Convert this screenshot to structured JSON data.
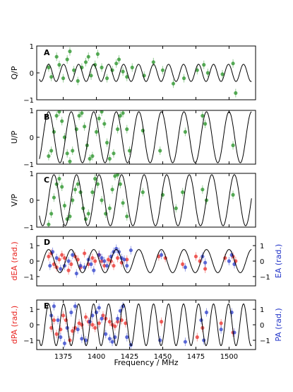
{
  "chart_data": [
    {
      "type": "scatter",
      "panel_label": "A",
      "ylabel": "Q/P",
      "ylim": [
        -1,
        1
      ],
      "yticks": [
        -1,
        0,
        1
      ],
      "xlim": [
        1355,
        1520
      ],
      "model": {
        "amplitude": 0.32,
        "period_mhz": 11.3,
        "phase_ref_mhz": 1364
      },
      "series": [
        {
          "color": "#1a8c1a",
          "points": [
            [
              1364,
              0.2
            ],
            [
              1366,
              -0.15
            ],
            [
              1370,
              0.6
            ],
            [
              1372,
              0.3
            ],
            [
              1375,
              -0.2
            ],
            [
              1378,
              0.5
            ],
            [
              1380,
              0.8
            ],
            [
              1383,
              0.1
            ],
            [
              1386,
              -0.3
            ],
            [
              1389,
              0.2
            ],
            [
              1392,
              0.4
            ],
            [
              1394,
              0.6
            ],
            [
              1396,
              -0.1
            ],
            [
              1399,
              0.3
            ],
            [
              1401,
              0.7
            ],
            [
              1404,
              0.2
            ],
            [
              1408,
              -0.2
            ],
            [
              1412,
              0.1
            ],
            [
              1415,
              0.35
            ],
            [
              1417,
              0.5
            ],
            [
              1420,
              0.05
            ],
            [
              1423,
              -0.15
            ],
            [
              1427,
              0.2
            ],
            [
              1436,
              -0.1
            ],
            [
              1443,
              0.4
            ],
            [
              1450,
              0.1
            ],
            [
              1458,
              -0.4
            ],
            [
              1466,
              -0.2
            ],
            [
              1476,
              0.1
            ],
            [
              1481,
              0.3
            ],
            [
              1484,
              0.0
            ],
            [
              1495,
              -0.05
            ],
            [
              1503,
              0.35
            ],
            [
              1505,
              -0.75
            ]
          ]
        }
      ]
    },
    {
      "type": "scatter",
      "panel_label": "B",
      "ylabel": "U/P",
      "ylim": [
        -1,
        1
      ],
      "yticks": [
        -1,
        0,
        1
      ],
      "xlim": [
        1355,
        1520
      ],
      "model": {
        "amplitude": 0.95,
        "period_mhz": 17.0,
        "phase_ref_mhz": 1364
      },
      "series": [
        {
          "color": "#1a8c1a",
          "points": [
            [
              1364,
              -0.7
            ],
            [
              1366,
              -0.5
            ],
            [
              1368,
              0.2
            ],
            [
              1370,
              0.8
            ],
            [
              1372,
              0.95
            ],
            [
              1374,
              0.6
            ],
            [
              1376,
              0.0
            ],
            [
              1378,
              -0.6
            ],
            [
              1380,
              -0.9
            ],
            [
              1382,
              -0.5
            ],
            [
              1385,
              0.3
            ],
            [
              1387,
              0.8
            ],
            [
              1389,
              0.9
            ],
            [
              1391,
              0.4
            ],
            [
              1393,
              -0.3
            ],
            [
              1395,
              -0.8
            ],
            [
              1397,
              -0.7
            ],
            [
              1400,
              0.2
            ],
            [
              1402,
              0.7
            ],
            [
              1404,
              0.95
            ],
            [
              1406,
              0.5
            ],
            [
              1408,
              -0.2
            ],
            [
              1410,
              -0.8
            ],
            [
              1413,
              -0.6
            ],
            [
              1416,
              0.3
            ],
            [
              1418,
              0.8
            ],
            [
              1420,
              0.9
            ],
            [
              1423,
              0.3
            ],
            [
              1425,
              -0.5
            ],
            [
              1435,
              0.25
            ],
            [
              1448,
              -0.5
            ],
            [
              1467,
              0.2
            ],
            [
              1480,
              0.8
            ],
            [
              1482,
              0.5
            ],
            [
              1503,
              -0.3
            ]
          ]
        }
      ]
    },
    {
      "type": "scatter",
      "panel_label": "C",
      "ylabel": "V/P",
      "ylim": [
        -1,
        1
      ],
      "yticks": [
        -1,
        0,
        1
      ],
      "xlim": [
        1355,
        1520
      ],
      "model": {
        "amplitude": 0.95,
        "period_mhz": 17.0,
        "phase_ref_mhz": 1368
      },
      "series": [
        {
          "color": "#1a8c1a",
          "points": [
            [
              1364,
              -0.9
            ],
            [
              1366,
              -0.5
            ],
            [
              1368,
              0.1
            ],
            [
              1370,
              0.6
            ],
            [
              1372,
              0.8
            ],
            [
              1374,
              0.5
            ],
            [
              1376,
              -0.2
            ],
            [
              1378,
              -0.7
            ],
            [
              1380,
              -0.6
            ],
            [
              1382,
              0.0
            ],
            [
              1384,
              0.4
            ],
            [
              1386,
              0.6
            ],
            [
              1388,
              0.3
            ],
            [
              1390,
              -0.3
            ],
            [
              1392,
              -0.7
            ],
            [
              1394,
              -0.5
            ],
            [
              1397,
              0.3
            ],
            [
              1399,
              0.8
            ],
            [
              1401,
              0.6
            ],
            [
              1404,
              0.0
            ],
            [
              1407,
              -0.5
            ],
            [
              1410,
              -0.3
            ],
            [
              1412,
              0.4
            ],
            [
              1414,
              0.9
            ],
            [
              1416,
              0.95
            ],
            [
              1418,
              0.6
            ],
            [
              1420,
              -0.1
            ],
            [
              1423,
              -0.6
            ],
            [
              1435,
              0.3
            ],
            [
              1450,
              0.2
            ],
            [
              1460,
              -0.3
            ],
            [
              1465,
              0.3
            ],
            [
              1480,
              0.4
            ],
            [
              1483,
              0.0
            ],
            [
              1503,
              0.2
            ]
          ]
        }
      ]
    },
    {
      "type": "scatter",
      "panel_label": "D",
      "ylabel": "dEA (rad.)",
      "ylabel_right": "EA (rad.)",
      "ylim": [
        -1.6,
        1.6
      ],
      "yticks": [
        -1,
        0,
        1
      ],
      "xlim": [
        1355,
        1520
      ],
      "model": {
        "amplitude": 0.75,
        "period_mhz": 17.0,
        "phase_ref_mhz": 1364
      },
      "series": [
        {
          "axis": "left",
          "color": "#e8231f",
          "points": [
            [
              1364,
              0.3
            ],
            [
              1366,
              0.5
            ],
            [
              1368,
              -0.2
            ],
            [
              1370,
              -0.4
            ],
            [
              1372,
              0.1
            ],
            [
              1374,
              0.4
            ],
            [
              1376,
              0.2
            ],
            [
              1379,
              -0.6
            ],
            [
              1381,
              -0.2
            ],
            [
              1384,
              0.3
            ],
            [
              1386,
              0.1
            ],
            [
              1388,
              -0.4
            ],
            [
              1391,
              0.5
            ],
            [
              1394,
              -0.2
            ],
            [
              1397,
              0.2
            ],
            [
              1399,
              0.0
            ],
            [
              1402,
              0.4
            ],
            [
              1404,
              0.0
            ],
            [
              1406,
              -0.3
            ],
            [
              1409,
              0.1
            ],
            [
              1411,
              0.0
            ],
            [
              1413,
              -0.3
            ],
            [
              1416,
              0.2
            ],
            [
              1419,
              -0.1
            ],
            [
              1423,
              0.1
            ],
            [
              1447,
              0.3
            ],
            [
              1452,
              0.2
            ],
            [
              1465,
              -0.2
            ],
            [
              1475,
              0.3
            ],
            [
              1478,
              0.0
            ],
            [
              1482,
              -0.5
            ],
            [
              1497,
              0.2
            ],
            [
              1503,
              0.3
            ],
            [
              1505,
              0.0
            ]
          ]
        },
        {
          "axis": "right",
          "color": "#2234c8",
          "points": [
            [
              1365,
              -0.3
            ],
            [
              1367,
              0.6
            ],
            [
              1370,
              0.2
            ],
            [
              1373,
              -0.5
            ],
            [
              1376,
              -0.3
            ],
            [
              1379,
              0.0
            ],
            [
              1382,
              0.4
            ],
            [
              1385,
              -0.8
            ],
            [
              1388,
              -0.3
            ],
            [
              1391,
              -0.4
            ],
            [
              1394,
              0.1
            ],
            [
              1396,
              -0.2
            ],
            [
              1398,
              -0.6
            ],
            [
              1402,
              0.4
            ],
            [
              1404,
              0.2
            ],
            [
              1406,
              0.0
            ],
            [
              1408,
              -0.3
            ],
            [
              1411,
              0.3
            ],
            [
              1413,
              0.6
            ],
            [
              1415,
              0.8
            ],
            [
              1417,
              0.6
            ],
            [
              1419,
              0.2
            ],
            [
              1421,
              0.1
            ],
            [
              1423,
              -0.3
            ],
            [
              1426,
              0.7
            ],
            [
              1449,
              0.4
            ],
            [
              1467,
              -0.4
            ],
            [
              1480,
              0.3
            ],
            [
              1482,
              -0.1
            ],
            [
              1500,
              0.0
            ],
            [
              1502,
              0.4
            ],
            [
              1504,
              -0.2
            ]
          ]
        }
      ]
    },
    {
      "type": "scatter",
      "panel_label": "E",
      "ylabel": "dPA (rad.)",
      "ylabel_right": "PA (rad.)",
      "xlabel": "Frequency / MHz",
      "ylim": [
        -1.6,
        1.6
      ],
      "yticks": [
        -1,
        0,
        1
      ],
      "xlim": [
        1355,
        1520
      ],
      "xticks": [
        1375,
        1400,
        1425,
        1450,
        1475,
        1500
      ],
      "model": {
        "amplitude": 1.35,
        "period_mhz": 11.3,
        "phase_ref_mhz": 1364
      },
      "series": [
        {
          "axis": "left",
          "color": "#e8231f",
          "points": [
            [
              1366,
              -0.2
            ],
            [
              1368,
              0.3
            ],
            [
              1370,
              -0.6
            ],
            [
              1373,
              -0.3
            ],
            [
              1375,
              0.6
            ],
            [
              1377,
              0.3
            ],
            [
              1380,
              -1.0
            ],
            [
              1382,
              -0.4
            ],
            [
              1384,
              -0.2
            ],
            [
              1387,
              0.1
            ],
            [
              1389,
              0.0
            ],
            [
              1392,
              0.5
            ],
            [
              1394,
              0.2
            ],
            [
              1397,
              0.0
            ],
            [
              1399,
              -0.2
            ],
            [
              1402,
              0.1
            ],
            [
              1405,
              0.6
            ],
            [
              1407,
              0.4
            ],
            [
              1410,
              0.2
            ],
            [
              1412,
              0.0
            ],
            [
              1414,
              -0.1
            ],
            [
              1416,
              0.2
            ],
            [
              1419,
              0.3
            ],
            [
              1422,
              0.1
            ],
            [
              1449,
              0.2
            ],
            [
              1476,
              -0.8
            ],
            [
              1480,
              -0.2
            ],
            [
              1494,
              0.1
            ],
            [
              1503,
              -0.5
            ]
          ]
        },
        {
          "axis": "right",
          "color": "#2234c8",
          "points": [
            [
              1366,
              0.6
            ],
            [
              1368,
              1.2
            ],
            [
              1371,
              0.3
            ],
            [
              1373,
              -0.8
            ],
            [
              1376,
              -1.2
            ],
            [
              1378,
              -0.2
            ],
            [
              1381,
              0.8
            ],
            [
              1384,
              1.2
            ],
            [
              1386,
              -0.3
            ],
            [
              1389,
              -0.9
            ],
            [
              1392,
              -1.0
            ],
            [
              1395,
              0.2
            ],
            [
              1397,
              0.6
            ],
            [
              1400,
              0.8
            ],
            [
              1402,
              1.1
            ],
            [
              1404,
              0.4
            ],
            [
              1407,
              -0.6
            ],
            [
              1410,
              -0.9
            ],
            [
              1412,
              -1.1
            ],
            [
              1414,
              -0.8
            ],
            [
              1416,
              0.4
            ],
            [
              1418,
              0.9
            ],
            [
              1420,
              1.2
            ],
            [
              1423,
              -0.8
            ],
            [
              1426,
              -1.3
            ],
            [
              1448,
              -1.0
            ],
            [
              1467,
              -1.1
            ],
            [
              1479,
              0.3
            ],
            [
              1481,
              -1.0
            ],
            [
              1483,
              0.8
            ],
            [
              1494,
              -0.3
            ],
            [
              1502,
              0.8
            ],
            [
              1504,
              -0.5
            ]
          ]
        }
      ]
    }
  ]
}
